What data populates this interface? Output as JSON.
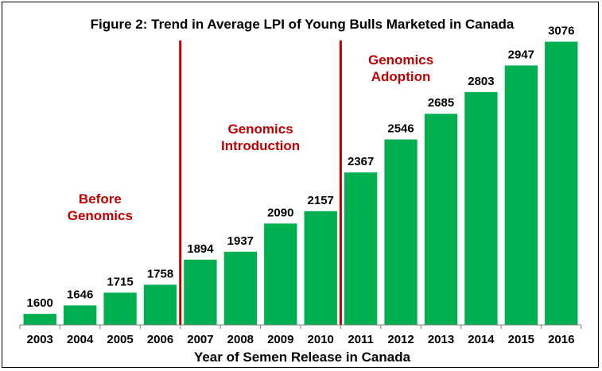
{
  "chart_data": {
    "type": "bar",
    "title": "Figure 2: Trend in Average LPI of Young Bulls Marketed in Canada",
    "xlabel": "Year of Semen Release in Canada",
    "ylabel": "",
    "categories": [
      "2003",
      "2004",
      "2005",
      "2006",
      "2007",
      "2008",
      "2009",
      "2010",
      "2011",
      "2012",
      "2013",
      "2014",
      "2015",
      "2016"
    ],
    "values": [
      1600,
      1646,
      1715,
      1758,
      1894,
      1937,
      2090,
      2157,
      2367,
      2546,
      2685,
      2803,
      2947,
      3076
    ],
    "ylim": [
      1540,
      3160
    ],
    "grid": false,
    "bar_color": "#00b050",
    "divider_color": "#c00000",
    "annotation_color": "#c00000",
    "dividers_after_category": [
      "2006",
      "2010"
    ],
    "annotations": [
      {
        "lines": [
          "Before",
          "Genomics"
        ],
        "over": [
          "2003",
          "2006"
        ]
      },
      {
        "lines": [
          "Genomics",
          "Introduction"
        ],
        "over": [
          "2007",
          "2010"
        ]
      },
      {
        "lines": [
          "Genomics",
          "Adoption"
        ],
        "over": [
          "2011",
          "2013"
        ]
      }
    ]
  }
}
